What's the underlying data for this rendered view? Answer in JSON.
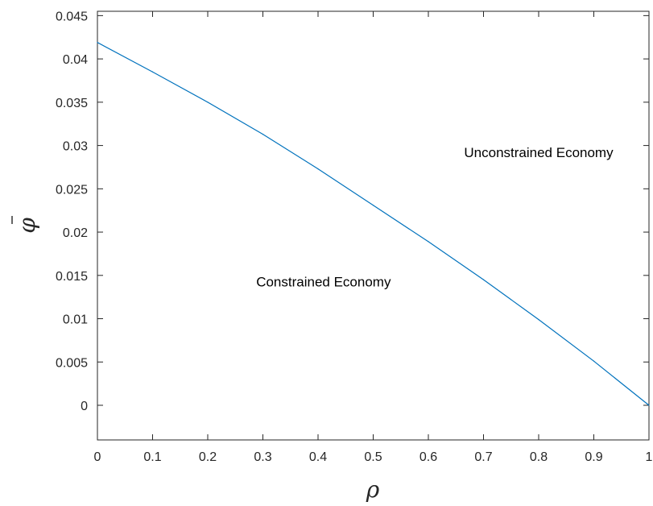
{
  "chart_data": {
    "type": "line",
    "xlabel": "ρ",
    "ylabel": "φ",
    "ylabel_bar": true,
    "xlim": [
      0,
      1
    ],
    "ylim": [
      -0.004,
      0.0455
    ],
    "xticks": [
      0,
      0.1,
      0.2,
      0.3,
      0.4,
      0.5,
      0.6,
      0.7,
      0.8,
      0.9,
      1
    ],
    "xtick_labels": [
      "0",
      "0.1",
      "0.2",
      "0.3",
      "0.4",
      "0.5",
      "0.6",
      "0.7",
      "0.8",
      "0.9",
      "1"
    ],
    "yticks": [
      0,
      0.005,
      0.01,
      0.015,
      0.02,
      0.025,
      0.03,
      0.035,
      0.04,
      0.045
    ],
    "ytick_labels": [
      "0",
      "0.005",
      "0.01",
      "0.015",
      "0.02",
      "0.025",
      "0.03",
      "0.035",
      "0.04",
      "0.045"
    ],
    "grid": false,
    "series": [
      {
        "color": "#0072bd",
        "x": [
          0,
          0.1,
          0.2,
          0.3,
          0.4,
          0.5,
          0.6,
          0.7,
          0.8,
          0.9,
          1.0
        ],
        "y": [
          0.0419,
          0.0385,
          0.035,
          0.0313,
          0.0273,
          0.0231,
          0.0189,
          0.0145,
          0.0099,
          0.0051,
          0.0
        ]
      }
    ],
    "annotations": [
      {
        "text": "Unconstrained Economy",
        "x": 0.8,
        "y": 0.0292
      },
      {
        "text": "Constrained Economy",
        "x": 0.41,
        "y": 0.0143
      }
    ]
  }
}
